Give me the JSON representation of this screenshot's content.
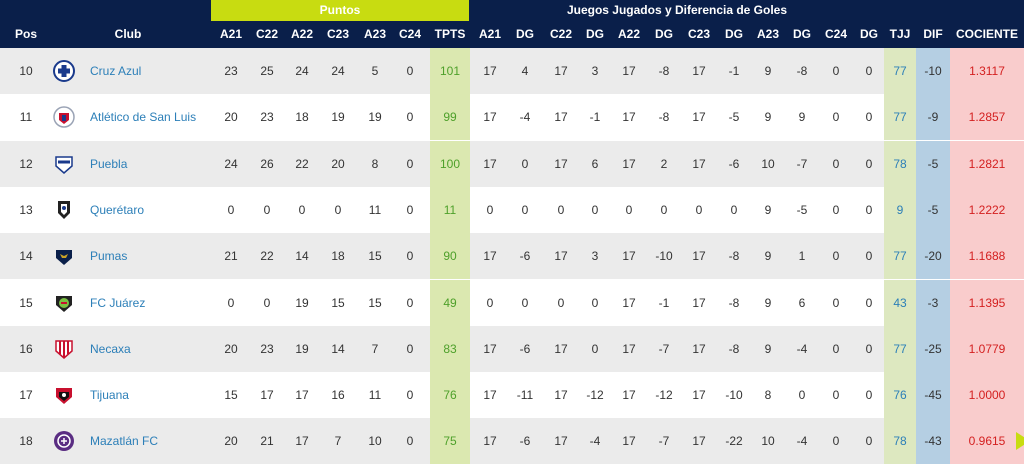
{
  "group_headers": {
    "puntos": "Puntos",
    "juegos": "Juegos Jugados y Diferencia de Goles"
  },
  "columns": {
    "pos": "Pos",
    "club": "Club",
    "a21": "A21",
    "c22": "C22",
    "a22": "A22",
    "c23": "C23",
    "a23": "A23",
    "c24": "C24",
    "tpts": "TPTS",
    "ga21": "A21",
    "dg1": "DG",
    "gc22": "C22",
    "dg2": "DG",
    "ga22": "A22",
    "dg3": "DG",
    "gc23": "C23",
    "dg4": "DG",
    "ga23": "A23",
    "dg5": "DG",
    "gc24": "C24",
    "dg6": "DG",
    "tjj": "TJJ",
    "dif": "DIF",
    "coc": "COCIENTE"
  },
  "colors": {
    "navy": "#0a1f4a",
    "puntos_band": "#c8dc11",
    "link": "#2c7fb8",
    "tpts_bg": "#dbe8b0",
    "dif_bg": "#b5cfe3",
    "cociente_bg": "#f9cccc",
    "cociente_text": "#d42020"
  },
  "rows": [
    {
      "pos": "10",
      "club": "Cruz Azul",
      "logo": "cruz-azul-logo",
      "a21": "23",
      "c22": "25",
      "a22": "24",
      "c23": "24",
      "a23": "5",
      "c24": "0",
      "tpts": "101",
      "ga21": "17",
      "dg1": "4",
      "gc22": "17",
      "dg2": "3",
      "ga22": "17",
      "dg3": "-8",
      "gc23": "17",
      "dg4": "-1",
      "ga23": "9",
      "dg5": "-8",
      "gc24": "0",
      "dg6": "0",
      "tjj": "77",
      "dif": "-10",
      "coc": "1.3117"
    },
    {
      "pos": "11",
      "club": "Atlético de San Luis",
      "logo": "atletico-san-luis-logo",
      "a21": "20",
      "c22": "23",
      "a22": "18",
      "c23": "19",
      "a23": "19",
      "c24": "0",
      "tpts": "99",
      "ga21": "17",
      "dg1": "-4",
      "gc22": "17",
      "dg2": "-1",
      "ga22": "17",
      "dg3": "-8",
      "gc23": "17",
      "dg4": "-5",
      "ga23": "9",
      "dg5": "9",
      "gc24": "0",
      "dg6": "0",
      "tjj": "77",
      "dif": "-9",
      "coc": "1.2857"
    },
    {
      "pos": "12",
      "club": "Puebla",
      "logo": "puebla-logo",
      "a21": "24",
      "c22": "26",
      "a22": "22",
      "c23": "20",
      "a23": "8",
      "c24": "0",
      "tpts": "100",
      "ga21": "17",
      "dg1": "0",
      "gc22": "17",
      "dg2": "6",
      "ga22": "17",
      "dg3": "2",
      "gc23": "17",
      "dg4": "-6",
      "ga23": "10",
      "dg5": "-7",
      "gc24": "0",
      "dg6": "0",
      "tjj": "78",
      "dif": "-5",
      "coc": "1.2821"
    },
    {
      "pos": "13",
      "club": "Querétaro",
      "logo": "queretaro-logo",
      "a21": "0",
      "c22": "0",
      "a22": "0",
      "c23": "0",
      "a23": "11",
      "c24": "0",
      "tpts": "11",
      "ga21": "0",
      "dg1": "0",
      "gc22": "0",
      "dg2": "0",
      "ga22": "0",
      "dg3": "0",
      "gc23": "0",
      "dg4": "0",
      "ga23": "9",
      "dg5": "-5",
      "gc24": "0",
      "dg6": "0",
      "tjj": "9",
      "dif": "-5",
      "coc": "1.2222"
    },
    {
      "pos": "14",
      "club": "Pumas",
      "logo": "pumas-logo",
      "a21": "21",
      "c22": "22",
      "a22": "14",
      "c23": "18",
      "a23": "15",
      "c24": "0",
      "tpts": "90",
      "ga21": "17",
      "dg1": "-6",
      "gc22": "17",
      "dg2": "3",
      "ga22": "17",
      "dg3": "-10",
      "gc23": "17",
      "dg4": "-8",
      "ga23": "9",
      "dg5": "1",
      "gc24": "0",
      "dg6": "0",
      "tjj": "77",
      "dif": "-20",
      "coc": "1.1688"
    },
    {
      "pos": "15",
      "club": "FC Juárez",
      "logo": "fc-juarez-logo",
      "a21": "0",
      "c22": "0",
      "a22": "19",
      "c23": "15",
      "a23": "15",
      "c24": "0",
      "tpts": "49",
      "ga21": "0",
      "dg1": "0",
      "gc22": "0",
      "dg2": "0",
      "ga22": "17",
      "dg3": "-1",
      "gc23": "17",
      "dg4": "-8",
      "ga23": "9",
      "dg5": "6",
      "gc24": "0",
      "dg6": "0",
      "tjj": "43",
      "dif": "-3",
      "coc": "1.1395"
    },
    {
      "pos": "16",
      "club": "Necaxa",
      "logo": "necaxa-logo",
      "a21": "20",
      "c22": "23",
      "a22": "19",
      "c23": "14",
      "a23": "7",
      "c24": "0",
      "tpts": "83",
      "ga21": "17",
      "dg1": "-6",
      "gc22": "17",
      "dg2": "0",
      "ga22": "17",
      "dg3": "-7",
      "gc23": "17",
      "dg4": "-8",
      "ga23": "9",
      "dg5": "-4",
      "gc24": "0",
      "dg6": "0",
      "tjj": "77",
      "dif": "-25",
      "coc": "1.0779"
    },
    {
      "pos": "17",
      "club": "Tijuana",
      "logo": "tijuana-logo",
      "a21": "15",
      "c22": "17",
      "a22": "17",
      "c23": "16",
      "a23": "11",
      "c24": "0",
      "tpts": "76",
      "ga21": "17",
      "dg1": "-11",
      "gc22": "17",
      "dg2": "-12",
      "ga22": "17",
      "dg3": "-12",
      "gc23": "17",
      "dg4": "-10",
      "ga23": "8",
      "dg5": "0",
      "gc24": "0",
      "dg6": "0",
      "tjj": "76",
      "dif": "-45",
      "coc": "1.0000"
    },
    {
      "pos": "18",
      "club": "Mazatlán FC",
      "logo": "mazatlan-logo",
      "a21": "20",
      "c22": "21",
      "a22": "17",
      "c23": "7",
      "a23": "10",
      "c24": "0",
      "tpts": "75",
      "ga21": "17",
      "dg1": "-6",
      "gc22": "17",
      "dg2": "-4",
      "ga22": "17",
      "dg3": "-7",
      "gc23": "17",
      "dg4": "-22",
      "ga23": "10",
      "dg5": "-4",
      "gc24": "0",
      "dg6": "0",
      "tjj": "78",
      "dif": "-43",
      "coc": "0.9615"
    }
  ]
}
